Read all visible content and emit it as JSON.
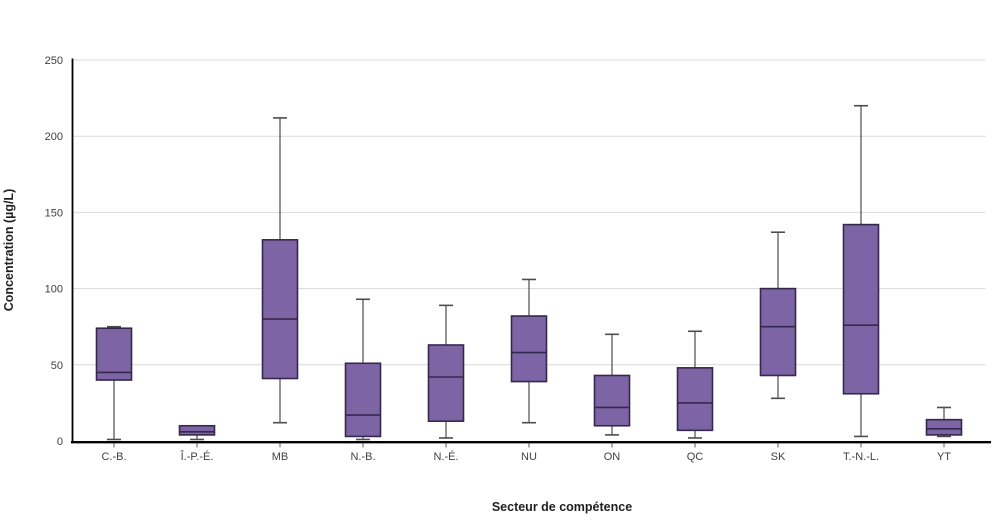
{
  "chart_data": {
    "type": "box",
    "title": "",
    "xlabel": "Secteur de compétence",
    "ylabel": "Concentration (µg/L)",
    "ylim": [
      0,
      250
    ],
    "yticks": [
      0,
      50,
      100,
      150,
      200,
      250
    ],
    "grid": true,
    "legend": "none",
    "categories": [
      "C.-B.",
      "Î.-P.-É.",
      "MB",
      "N.-B.",
      "N.-É.",
      "NU",
      "ON",
      "QC",
      "SK",
      "T.-N.-L.",
      "YT"
    ],
    "series": [
      {
        "name": "C.-B.",
        "min": 1,
        "q1": 40,
        "median": 45,
        "q3": 74,
        "max": 75
      },
      {
        "name": "Î.-P.-É.",
        "min": 1,
        "q1": 4,
        "median": 6,
        "q3": 10,
        "max": 10
      },
      {
        "name": "MB",
        "min": 12,
        "q1": 41,
        "median": 80,
        "q3": 132,
        "max": 212
      },
      {
        "name": "N.-B.",
        "min": 1,
        "q1": 3,
        "median": 17,
        "q3": 51,
        "max": 93
      },
      {
        "name": "N.-É.",
        "min": 2,
        "q1": 13,
        "median": 42,
        "q3": 63,
        "max": 89
      },
      {
        "name": "NU",
        "min": 12,
        "q1": 39,
        "median": 58,
        "q3": 82,
        "max": 106
      },
      {
        "name": "ON",
        "min": 4,
        "q1": 10,
        "median": 22,
        "q3": 43,
        "max": 70
      },
      {
        "name": "QC",
        "min": 2,
        "q1": 7,
        "median": 25,
        "q3": 48,
        "max": 72
      },
      {
        "name": "SK",
        "min": 28,
        "q1": 43,
        "median": 75,
        "q3": 100,
        "max": 137
      },
      {
        "name": "T.-N.-L.",
        "min": 3,
        "q1": 31,
        "median": 76,
        "q3": 142,
        "max": 220
      },
      {
        "name": "YT",
        "min": 3,
        "q1": 4,
        "median": 8,
        "q3": 14,
        "max": 22
      }
    ],
    "colors": {
      "box_fill": "#7D64A5",
      "box_border": "#35284E",
      "whisker": "#4D4D4D",
      "gridline": "#D9D9D9",
      "axis_line": "#000000",
      "axis_tick": "#595959",
      "tick_text": "#404040",
      "title_text": "#1F1F1F",
      "background": "#FFFFFF"
    }
  }
}
